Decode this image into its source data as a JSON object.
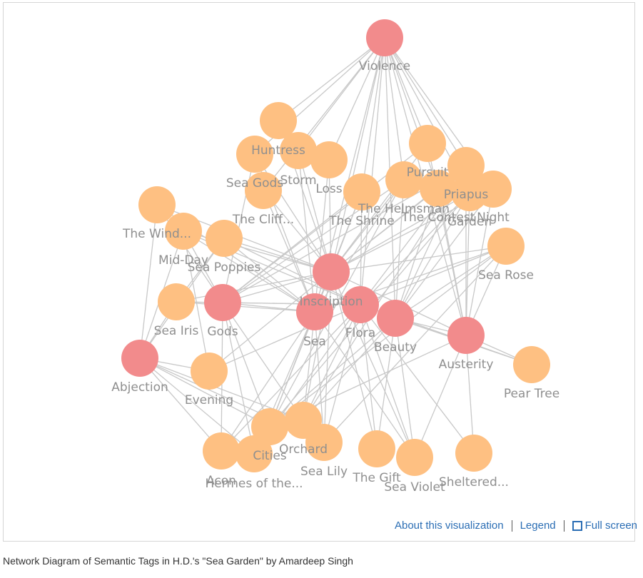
{
  "colors": {
    "theme_node": "#f28b8c",
    "poem_node": "#fec082",
    "edge": "#c8c8c8",
    "label": "#8f8f8f",
    "link": "#2a6db4"
  },
  "links": {
    "about": "About this visualization",
    "legend": "Legend",
    "fullscreen": "Full screen"
  },
  "caption": "Network Diagram of Semantic Tags in H.D.'s \"Sea Garden\" by Amardeep Singh",
  "nodes": [
    {
      "id": "violence",
      "label": "Violence",
      "kind": "theme"
    },
    {
      "id": "inscription",
      "label": "Inscription",
      "kind": "theme"
    },
    {
      "id": "gods",
      "label": "Gods",
      "kind": "theme"
    },
    {
      "id": "sea",
      "label": "Sea",
      "kind": "theme"
    },
    {
      "id": "flora",
      "label": "Flora",
      "kind": "theme"
    },
    {
      "id": "beauty",
      "label": "Beauty",
      "kind": "theme"
    },
    {
      "id": "austerity",
      "label": "Austerity",
      "kind": "theme"
    },
    {
      "id": "abjection",
      "label": "Abjection",
      "kind": "theme"
    },
    {
      "id": "huntress",
      "label": "Huntress",
      "kind": "poem"
    },
    {
      "id": "seagods",
      "label": "Sea Gods",
      "kind": "poem"
    },
    {
      "id": "storm",
      "label": "Storm",
      "kind": "poem"
    },
    {
      "id": "loss",
      "label": "Loss",
      "kind": "poem"
    },
    {
      "id": "cliff",
      "label": "The Cliff...",
      "kind": "poem"
    },
    {
      "id": "shrine",
      "label": "The Shrine",
      "kind": "poem"
    },
    {
      "id": "helmsman",
      "label": "The Helmsman",
      "kind": "poem"
    },
    {
      "id": "pursuit",
      "label": "Pursuit",
      "kind": "poem"
    },
    {
      "id": "contest",
      "label": "The Contest",
      "kind": "poem"
    },
    {
      "id": "priapus",
      "label": "Priapus",
      "kind": "poem"
    },
    {
      "id": "night",
      "label": "Night",
      "kind": "poem"
    },
    {
      "id": "garden",
      "label": "Garden",
      "kind": "poem"
    },
    {
      "id": "wind",
      "label": "The Wind...",
      "kind": "poem"
    },
    {
      "id": "midday",
      "label": "Mid-Day",
      "kind": "poem"
    },
    {
      "id": "seapoppies",
      "label": "Sea Poppies",
      "kind": "poem"
    },
    {
      "id": "searose",
      "label": "Sea Rose",
      "kind": "poem"
    },
    {
      "id": "seairis",
      "label": "Sea Iris",
      "kind": "poem"
    },
    {
      "id": "peartree",
      "label": "Pear Tree",
      "kind": "poem"
    },
    {
      "id": "evening",
      "label": "Evening",
      "kind": "poem"
    },
    {
      "id": "acon",
      "label": "Acon",
      "kind": "poem"
    },
    {
      "id": "hermes",
      "label": "Hermes of the...",
      "kind": "poem"
    },
    {
      "id": "cities",
      "label": "Cities",
      "kind": "poem"
    },
    {
      "id": "orchard",
      "label": "Orchard",
      "kind": "poem"
    },
    {
      "id": "sealily",
      "label": "Sea Lily",
      "kind": "poem"
    },
    {
      "id": "gift",
      "label": "The Gift",
      "kind": "poem"
    },
    {
      "id": "seaviolet",
      "label": "Sea Violet",
      "kind": "poem"
    },
    {
      "id": "sheltered",
      "label": "Sheltered...",
      "kind": "poem"
    }
  ],
  "edges": [
    [
      "violence",
      "huntress"
    ],
    [
      "violence",
      "storm"
    ],
    [
      "violence",
      "loss"
    ],
    [
      "violence",
      "seagods"
    ],
    [
      "violence",
      "cliff"
    ],
    [
      "violence",
      "shrine"
    ],
    [
      "violence",
      "helmsman"
    ],
    [
      "violence",
      "pursuit"
    ],
    [
      "violence",
      "contest"
    ],
    [
      "violence",
      "priapus"
    ],
    [
      "violence",
      "night"
    ],
    [
      "violence",
      "garden"
    ],
    [
      "violence",
      "inscription"
    ],
    [
      "violence",
      "flora"
    ],
    [
      "violence",
      "beauty"
    ],
    [
      "violence",
      "austerity"
    ],
    [
      "violence",
      "sea"
    ],
    [
      "inscription",
      "huntress"
    ],
    [
      "inscription",
      "seagods"
    ],
    [
      "inscription",
      "storm"
    ],
    [
      "inscription",
      "loss"
    ],
    [
      "inscription",
      "cliff"
    ],
    [
      "inscription",
      "shrine"
    ],
    [
      "inscription",
      "helmsman"
    ],
    [
      "inscription",
      "pursuit"
    ],
    [
      "inscription",
      "contest"
    ],
    [
      "inscription",
      "priapus"
    ],
    [
      "inscription",
      "night"
    ],
    [
      "inscription",
      "garden"
    ],
    [
      "inscription",
      "midday"
    ],
    [
      "inscription",
      "seapoppies"
    ],
    [
      "inscription",
      "wind"
    ],
    [
      "inscription",
      "searose"
    ],
    [
      "inscription",
      "seairis"
    ],
    [
      "inscription",
      "evening"
    ],
    [
      "inscription",
      "cities"
    ],
    [
      "inscription",
      "orchard"
    ],
    [
      "inscription",
      "sealily"
    ],
    [
      "inscription",
      "gift"
    ],
    [
      "inscription",
      "seaviolet"
    ],
    [
      "inscription",
      "austerity"
    ],
    [
      "sea",
      "storm"
    ],
    [
      "sea",
      "seagods"
    ],
    [
      "sea",
      "cliff"
    ],
    [
      "sea",
      "shrine"
    ],
    [
      "sea",
      "helmsman"
    ],
    [
      "sea",
      "searose"
    ],
    [
      "sea",
      "seapoppies"
    ],
    [
      "sea",
      "seairis"
    ],
    [
      "sea",
      "midday"
    ],
    [
      "sea",
      "sealily"
    ],
    [
      "sea",
      "seaviolet"
    ],
    [
      "sea",
      "hermes"
    ],
    [
      "sea",
      "orchard"
    ],
    [
      "sea",
      "cities"
    ],
    [
      "sea",
      "acon"
    ],
    [
      "sea",
      "loss"
    ],
    [
      "sea",
      "wind"
    ],
    [
      "flora",
      "searose"
    ],
    [
      "flora",
      "seapoppies"
    ],
    [
      "flora",
      "seairis"
    ],
    [
      "flora",
      "garden"
    ],
    [
      "flora",
      "orchard"
    ],
    [
      "flora",
      "sealily"
    ],
    [
      "flora",
      "seaviolet"
    ],
    [
      "flora",
      "peartree"
    ],
    [
      "flora",
      "gift"
    ],
    [
      "flora",
      "sheltered"
    ],
    [
      "flora",
      "evening"
    ],
    [
      "flora",
      "midday"
    ],
    [
      "flora",
      "priapus"
    ],
    [
      "flora",
      "hermes"
    ],
    [
      "flora",
      "acon"
    ],
    [
      "flora",
      "shrine"
    ],
    [
      "beauty",
      "searose"
    ],
    [
      "beauty",
      "garden"
    ],
    [
      "beauty",
      "priapus"
    ],
    [
      "beauty",
      "night"
    ],
    [
      "beauty",
      "gift"
    ],
    [
      "beauty",
      "cities"
    ],
    [
      "beauty",
      "seaviolet"
    ],
    [
      "beauty",
      "orchard"
    ],
    [
      "beauty",
      "contest"
    ],
    [
      "beauty",
      "helmsman"
    ],
    [
      "beauty",
      "peartree"
    ],
    [
      "beauty",
      "austerity"
    ],
    [
      "austerity",
      "searose"
    ],
    [
      "austerity",
      "peartree"
    ],
    [
      "austerity",
      "garden"
    ],
    [
      "austerity",
      "night"
    ],
    [
      "austerity",
      "sheltered"
    ],
    [
      "austerity",
      "seaviolet"
    ],
    [
      "austerity",
      "priapus"
    ],
    [
      "austerity",
      "cities"
    ],
    [
      "austerity",
      "contest"
    ],
    [
      "austerity",
      "pursuit"
    ],
    [
      "gods",
      "seagods"
    ],
    [
      "gods",
      "hermes"
    ],
    [
      "gods",
      "acon"
    ],
    [
      "gods",
      "cities"
    ],
    [
      "gods",
      "priapus"
    ],
    [
      "gods",
      "orchard"
    ],
    [
      "gods",
      "pursuit"
    ],
    [
      "gods",
      "midday"
    ],
    [
      "gods",
      "seairis"
    ],
    [
      "gods",
      "helmsman"
    ],
    [
      "gods",
      "wind"
    ],
    [
      "gods",
      "shrine"
    ],
    [
      "gods",
      "inscription"
    ],
    [
      "gods",
      "flora"
    ],
    [
      "gods",
      "sea"
    ],
    [
      "abjection",
      "wind"
    ],
    [
      "abjection",
      "midday"
    ],
    [
      "abjection",
      "seairis"
    ],
    [
      "abjection",
      "evening"
    ],
    [
      "abjection",
      "acon"
    ],
    [
      "abjection",
      "hermes"
    ],
    [
      "abjection",
      "cities"
    ],
    [
      "abjection",
      "orchard"
    ],
    [
      "abjection",
      "sealily"
    ],
    [
      "abjection",
      "seapoppies"
    ],
    [
      "cities",
      "searose"
    ],
    [
      "cities",
      "garden"
    ],
    [
      "cities",
      "helmsman"
    ],
    [
      "orchard",
      "priapus"
    ],
    [
      "sealily",
      "searose"
    ],
    [
      "evening",
      "midday"
    ],
    [
      "seapoppies",
      "seairis"
    ]
  ]
}
